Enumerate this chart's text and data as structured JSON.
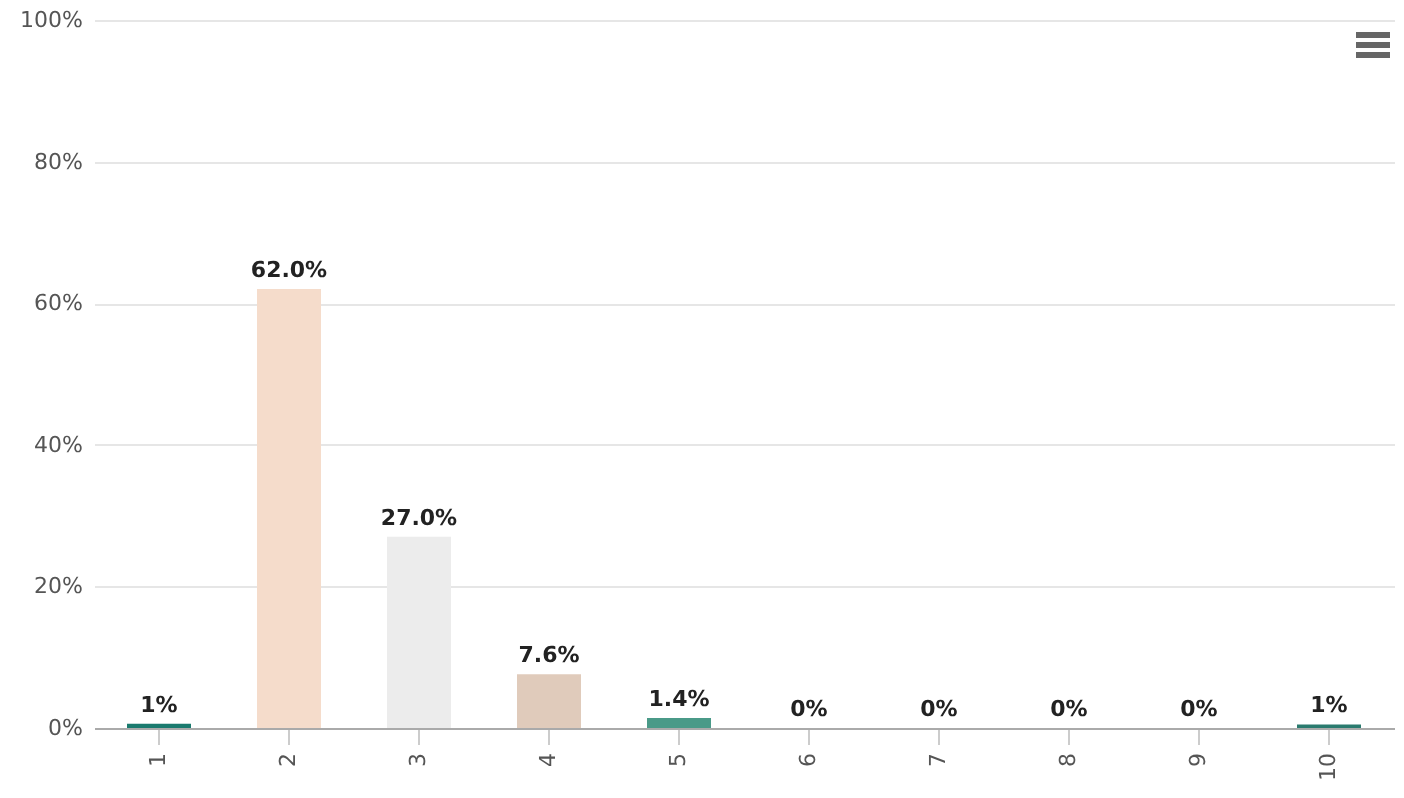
{
  "chart_data": {
    "type": "bar",
    "categories": [
      "1",
      "2",
      "3",
      "4",
      "5",
      "6",
      "7",
      "8",
      "9",
      "10"
    ],
    "values": [
      0.6,
      62.0,
      27.0,
      7.6,
      1.4,
      0,
      0,
      0,
      0,
      0.5
    ],
    "value_labels": [
      "1%",
      "62.0%",
      "27.0%",
      "7.6%",
      "1.4%",
      "0%",
      "0%",
      "0%",
      "0%",
      "1%"
    ],
    "colors": [
      "#1a7a6e",
      "#f5dccb",
      "#ececec",
      "#e0cbbb",
      "#4a9a88",
      "#4a9a88",
      "#4a9a88",
      "#4a9a88",
      "#4a9a88",
      "#2a7a6e"
    ],
    "ylim": [
      0,
      100
    ],
    "yticks": [
      {
        "value": 0,
        "label": "0%"
      },
      {
        "value": 20,
        "label": "20%"
      },
      {
        "value": 40,
        "label": "40%"
      },
      {
        "value": 60,
        "label": "60%"
      },
      {
        "value": 80,
        "label": "80%"
      },
      {
        "value": 100,
        "label": "100%"
      }
    ],
    "grid": "y"
  }
}
